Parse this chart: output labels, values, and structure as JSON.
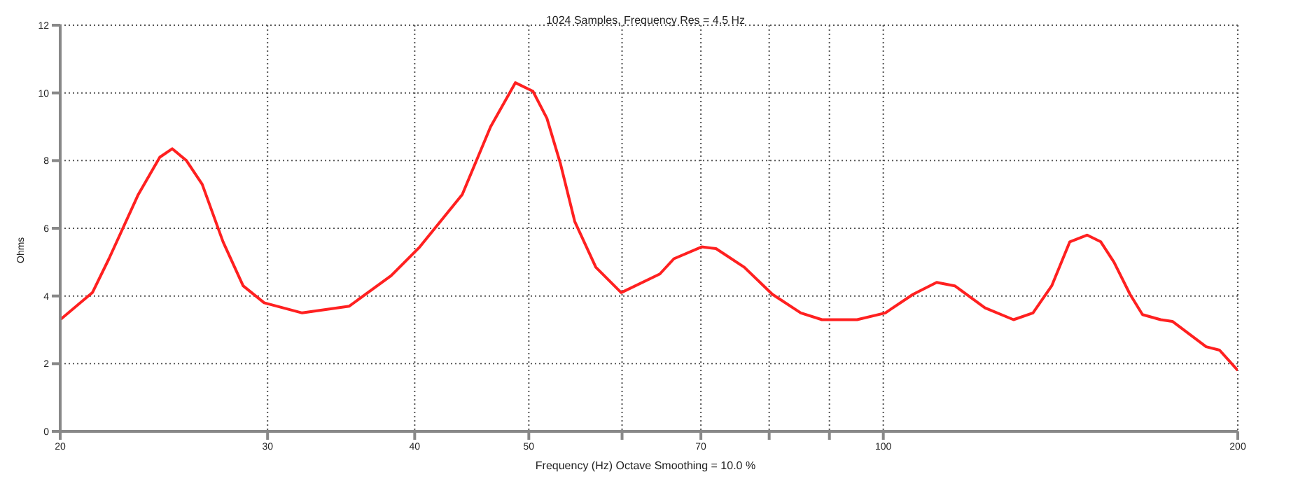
{
  "chart_data": {
    "type": "line",
    "title": "1024 Samples, Frequency Res = 4.5 Hz",
    "xlabel": "Frequency (Hz) Octave Smoothing = 10.0 %",
    "ylabel": "Ohms",
    "log": "x",
    "grid": true,
    "legend": false,
    "marker": "none",
    "line_style": "solid",
    "xlim": [
      20,
      200
    ],
    "xticks": [
      20,
      30,
      40,
      50,
      {
        "value": 60,
        "label": null
      },
      70,
      {
        "value": 80,
        "label": null
      },
      {
        "value": 90,
        "label": null
      },
      100,
      200
    ],
    "ylim": [
      0,
      12
    ],
    "yticks": [
      0,
      2,
      4,
      6,
      8,
      10,
      12
    ],
    "series": [
      {
        "color": "#ff2020",
        "x": [
          20,
          21.3,
          22.0,
          23.3,
          24.3,
          24.9,
          25.6,
          26.4,
          27.5,
          28.6,
          29.8,
          32.1,
          35.2,
          38.2,
          40.4,
          43.9,
          46.4,
          48.7,
          50.4,
          51.8,
          53.2,
          54.7,
          57.0,
          59.9,
          64.6,
          66.4,
          70.1,
          72.1,
          76.2,
          80.5,
          85.1,
          88.7,
          95.0,
          100.4,
          106,
          111,
          115,
          122,
          129,
          134,
          139,
          144,
          149,
          153,
          157,
          162,
          166,
          172,
          176,
          188,
          193,
          200
        ],
        "values": [
          3.3,
          4.1,
          5.1,
          7.0,
          8.1,
          8.35,
          8.0,
          7.3,
          5.6,
          4.3,
          3.8,
          3.5,
          3.7,
          4.6,
          5.45,
          7.0,
          9.0,
          10.3,
          10.05,
          9.25,
          7.9,
          6.2,
          4.85,
          4.1,
          4.65,
          5.1,
          5.45,
          5.4,
          4.85,
          4.05,
          3.5,
          3.3,
          3.3,
          3.5,
          4.05,
          4.4,
          4.3,
          3.65,
          3.3,
          3.5,
          4.3,
          5.6,
          5.8,
          5.6,
          5.0,
          4.05,
          3.45,
          3.3,
          3.25,
          2.5,
          2.4,
          1.8
        ]
      }
    ]
  }
}
